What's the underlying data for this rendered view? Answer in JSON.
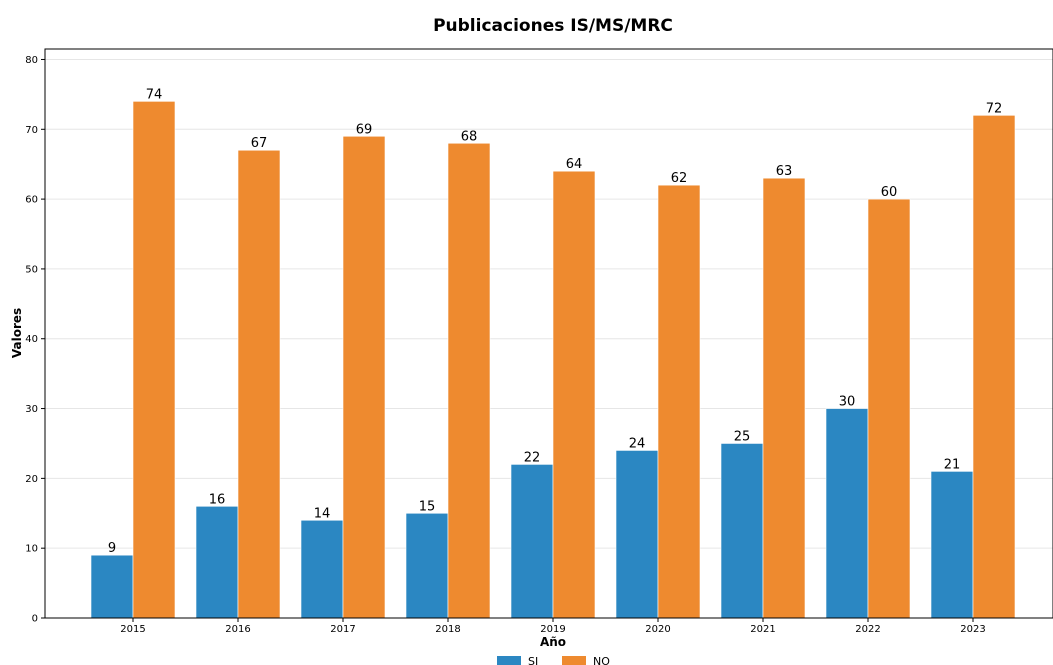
{
  "chart_data": {
    "type": "bar",
    "title": "Publicaciones IS/MS/MRC",
    "xlabel": "Año",
    "ylabel": "Valores",
    "categories": [
      "2015",
      "2016",
      "2017",
      "2018",
      "2019",
      "2020",
      "2021",
      "2022",
      "2023"
    ],
    "series": [
      {
        "name": "SI",
        "color": "#2b87c2",
        "values": [
          9,
          16,
          14,
          15,
          22,
          24,
          25,
          30,
          21
        ]
      },
      {
        "name": "NO",
        "color": "#ee8a2f",
        "values": [
          74,
          67,
          69,
          68,
          64,
          62,
          63,
          60,
          72
        ]
      }
    ],
    "ylim": [
      0,
      81.5
    ],
    "yticks": [
      0,
      10,
      20,
      30,
      40,
      50,
      60,
      70,
      80
    ],
    "grid": "horizontal",
    "legend": "bottom-center"
  }
}
